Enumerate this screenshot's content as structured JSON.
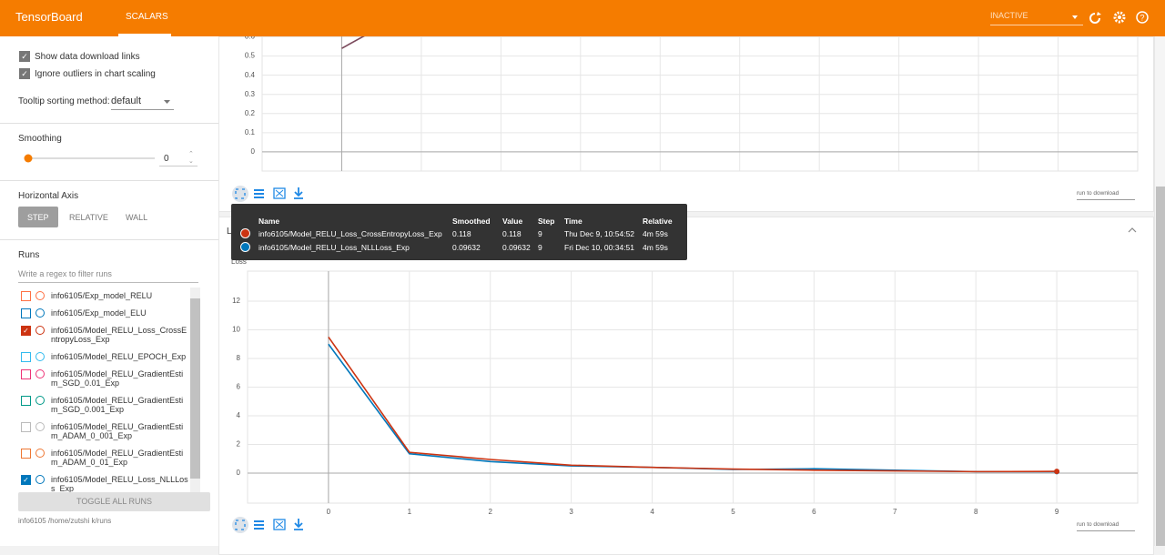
{
  "header": {
    "brand": "TensorBoard",
    "tab": "SCALARS",
    "status": "INACTIVE"
  },
  "sidebar": {
    "show_download": "Show data download links",
    "ignore_outliers": "Ignore outliers in chart scaling",
    "tooltip_sorting_label": "Tooltip sorting method:",
    "tooltip_sorting_value": "default",
    "smoothing_label": "Smoothing",
    "smoothing_value": 0,
    "horizontal_axis_label": "Horizontal Axis",
    "horizontal_axis_options": [
      "STEP",
      "RELATIVE",
      "WALL"
    ],
    "runs_label": "Runs",
    "runs_filter_placeholder": "Write a regex to filter runs",
    "runs": [
      {
        "name": "info6105/Exp_model_RELU",
        "color": "#ff7043",
        "checked": false
      },
      {
        "name": "info6105/Exp_model_ELU",
        "color": "#0077bb",
        "checked": false
      },
      {
        "name": "info6105/Model_RELU_Loss_CrossEntropyLoss_Exp",
        "color": "#cc3311",
        "checked": true
      },
      {
        "name": "info6105/Model_RELU_EPOCH_Exp",
        "color": "#33bbee",
        "checked": false
      },
      {
        "name": "info6105/Model_RELU_GradientEstim_SGD_0.01_Exp",
        "color": "#ee3377",
        "checked": false
      },
      {
        "name": "info6105/Model_RELU_GradientEstim_SGD_0.001_Exp",
        "color": "#009988",
        "checked": false
      },
      {
        "name": "info6105/Model_RELU_GradientEstim_ADAM_0_001_Exp",
        "color": "#bbbbbb",
        "checked": false
      },
      {
        "name": "info6105/Model_RELU_GradientEstim_ADAM_0_01_Exp",
        "color": "#ee7733",
        "checked": false
      },
      {
        "name": "info6105/Model_RELU_Loss_NLLLoss_Exp",
        "color": "#0077bb",
        "checked": true
      }
    ],
    "toggle_all": "TOGGLE ALL RUNS",
    "log_dir": "info6105 /home/zutshi k/runs"
  },
  "chart_data": [
    {
      "type": "line",
      "xlim": [
        -1,
        10
      ],
      "ylim": [
        -0.1,
        0.65
      ],
      "xticks": [
        0,
        1,
        2,
        3,
        4,
        5,
        6,
        7,
        8,
        9
      ],
      "show_xtick_labels": false,
      "yticks": [
        0,
        0.1,
        0.2,
        0.3,
        0.4,
        0.5,
        0.6
      ],
      "grid": true,
      "series": [
        {
          "color": "#7b4a5c",
          "x": [
            0,
            1
          ],
          "values": [
            0.54,
            0.77
          ]
        }
      ],
      "download_label": "run to download"
    },
    {
      "type": "line",
      "group_title": "Loss",
      "title": "Loss",
      "xlim": [
        -1,
        10
      ],
      "ylim": [
        -2.1,
        14.1
      ],
      "xticks": [
        0,
        1,
        2,
        3,
        4,
        5,
        6,
        7,
        8,
        9
      ],
      "yticks": [
        0,
        2,
        4,
        6,
        8,
        10,
        12
      ],
      "grid": true,
      "series": [
        {
          "name": "info6105/Model_RELU_Loss_CrossEntropyLoss_Exp",
          "color": "#cc3311",
          "x": [
            0,
            1,
            2,
            3,
            4,
            5,
            6,
            7,
            8,
            9
          ],
          "values": [
            9.5,
            1.45,
            0.95,
            0.55,
            0.4,
            0.28,
            0.2,
            0.15,
            0.1,
            0.118
          ]
        },
        {
          "name": "info6105/Model_RELU_Loss_NLLLoss_Exp",
          "color": "#0077bb",
          "x": [
            0,
            1,
            2,
            3,
            4,
            5,
            6,
            7,
            8,
            9
          ],
          "values": [
            9.0,
            1.35,
            0.8,
            0.5,
            0.4,
            0.25,
            0.3,
            0.2,
            0.1,
            0.09632
          ]
        }
      ],
      "download_label": "run to download"
    }
  ],
  "tooltip": {
    "columns": [
      "Name",
      "Smoothed",
      "Value",
      "Step",
      "Time",
      "Relative"
    ],
    "rows": [
      {
        "smoothed": "0.118",
        "value": "0.118",
        "step": "9",
        "time": "Thu Dec 9, 10:54:52",
        "relative": "4m 59s"
      },
      {
        "smoothed": "0.09632",
        "value": "0.09632",
        "step": "9",
        "time": "Fri Dec 10, 00:34:51",
        "relative": "4m 59s"
      }
    ]
  }
}
